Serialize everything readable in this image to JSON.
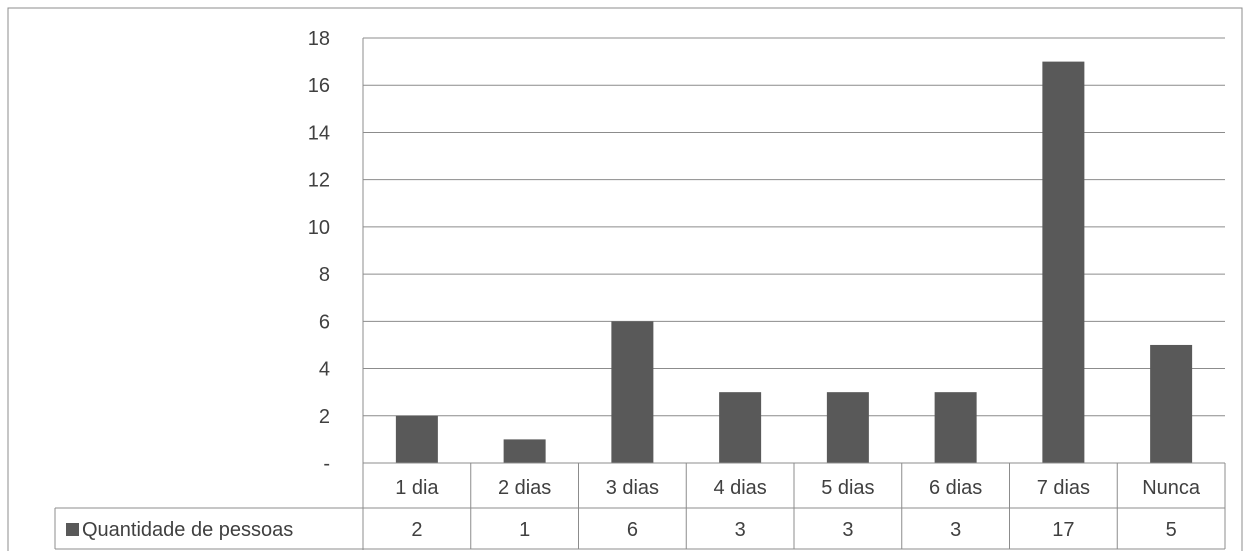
{
  "chart_data": {
    "type": "bar",
    "categories": [
      "1 dia",
      "2 dias",
      "3 dias",
      "4 dias",
      "5 dias",
      "6 dias",
      "7 dias",
      "Nunca"
    ],
    "series": [
      {
        "name": "Quantidade de pessoas",
        "values": [
          2,
          1,
          6,
          3,
          3,
          3,
          17,
          5
        ]
      }
    ],
    "ylim": [
      0,
      18
    ],
    "yticks": [
      {
        "value": 0,
        "label": "-"
      },
      {
        "value": 2,
        "label": "2"
      },
      {
        "value": 4,
        "label": "4"
      },
      {
        "value": 6,
        "label": "6"
      },
      {
        "value": 8,
        "label": "8"
      },
      {
        "value": 10,
        "label": "10"
      },
      {
        "value": 12,
        "label": "12"
      },
      {
        "value": 14,
        "label": "14"
      },
      {
        "value": 16,
        "label": "16"
      },
      {
        "value": 18,
        "label": "18"
      }
    ],
    "grid": true,
    "legend": "data-table",
    "colors": {
      "bar": "#595959",
      "grid": "#8c8c8c",
      "border": "#8c8c8c",
      "text": "#404040"
    }
  }
}
